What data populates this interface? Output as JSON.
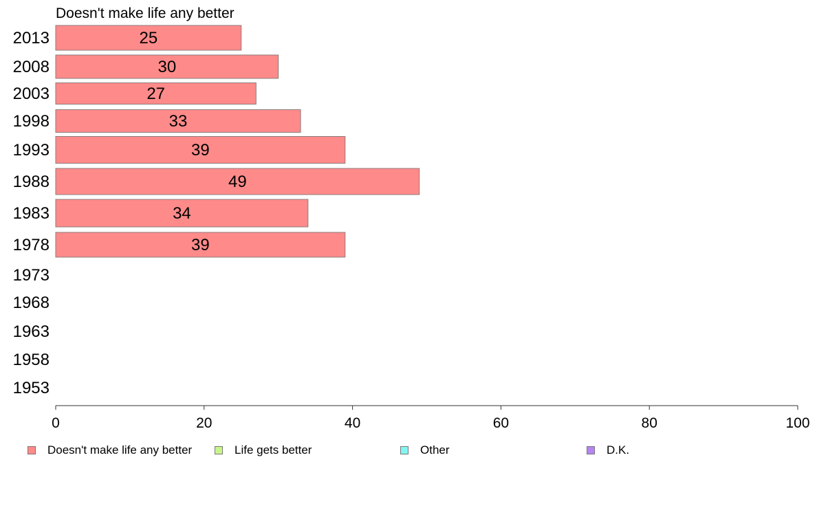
{
  "chart_data": {
    "type": "bar",
    "orientation": "horizontal",
    "title": "Doesn't make life any better",
    "categories": [
      "2013",
      "2008",
      "2003",
      "1998",
      "1993",
      "1988",
      "1983",
      "1978",
      "1973",
      "1968",
      "1963",
      "1958",
      "1953"
    ],
    "series": [
      {
        "name": "Doesn't make life any better",
        "color": "#ff8a8a",
        "values": [
          25,
          30,
          27,
          33,
          39,
          49,
          34,
          39,
          null,
          null,
          null,
          null,
          null
        ],
        "labels": [
          "25",
          "30",
          "27",
          "33",
          "39",
          "49",
          "34",
          "39",
          "",
          "",
          "",
          "",
          ""
        ]
      }
    ],
    "xlim": [
      0,
      100
    ],
    "x_ticks": [
      "0",
      "20",
      "40",
      "60",
      "80",
      "100"
    ],
    "grid": false,
    "legend": {
      "position": "bottom",
      "items": [
        {
          "label": "Doesn't make life any better",
          "color": "#ff8a8a"
        },
        {
          "label": "Life gets better",
          "color": "#c7f58a"
        },
        {
          "label": "Other",
          "color": "#82f6f3"
        },
        {
          "label": "D.K.",
          "color": "#b884f4"
        }
      ]
    }
  }
}
